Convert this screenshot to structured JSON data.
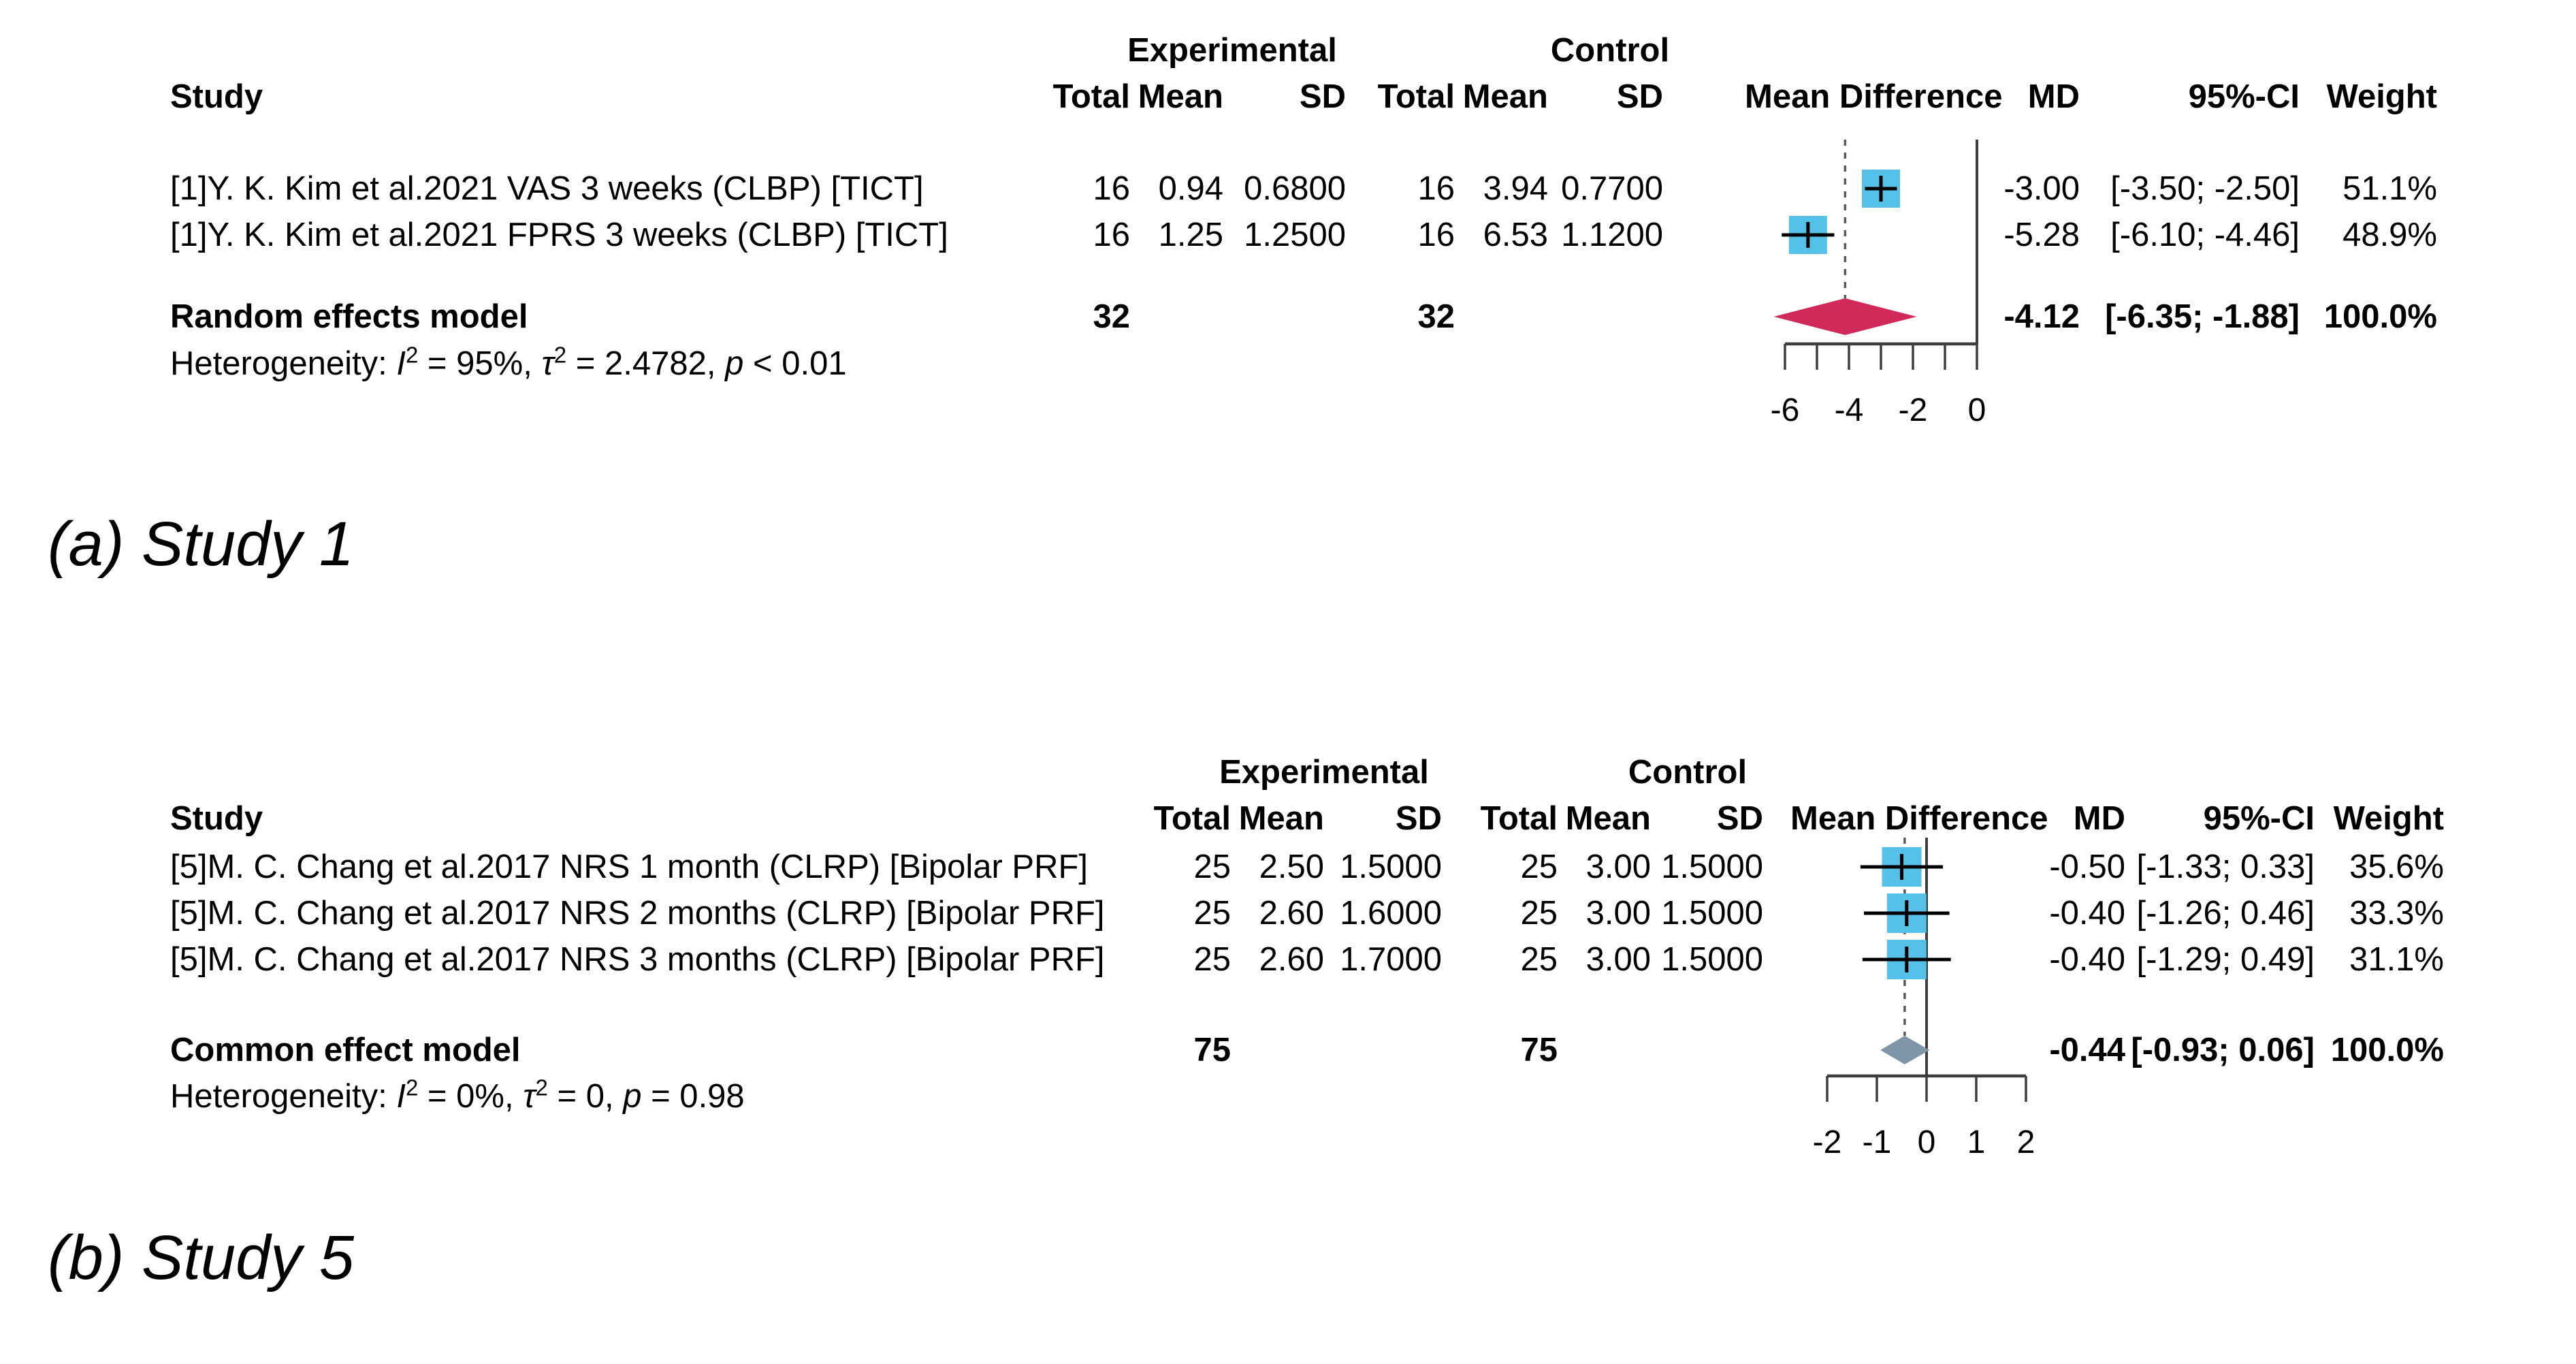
{
  "captions": {
    "a": "(a) Study 1",
    "b": "(b) Study 5"
  },
  "chart_data": [
    {
      "type": "forest",
      "caption": "(a) Study 1",
      "col_headers": {
        "experimental": "Experimental",
        "control": "Control",
        "study": "Study",
        "total1": "Total",
        "mean1": "Mean",
        "sd1": "SD",
        "total2": "Total",
        "mean2": "Mean",
        "sd2": "SD",
        "mean_difference": "Mean Difference",
        "md": "MD",
        "ci": "95%-CI",
        "weight": "Weight"
      },
      "rows": [
        {
          "study": "[1]Y. K. Kim et al.2021 VAS 3 weeks (CLBP) [TICT]",
          "exp_total": "16",
          "exp_mean": "0.94",
          "exp_sd": "0.6800",
          "ctl_total": "16",
          "ctl_mean": "3.94",
          "ctl_sd": "0.7700",
          "md": -3.0,
          "ci_low": -3.5,
          "ci_high": -2.5,
          "md_label": "-3.00",
          "ci_label": "[-3.50; -2.50]",
          "weight_label": "51.1%"
        },
        {
          "study": "[1]Y. K. Kim et al.2021 FPRS 3 weeks (CLBP) [TICT]",
          "exp_total": "16",
          "exp_mean": "1.25",
          "exp_sd": "1.2500",
          "ctl_total": "16",
          "ctl_mean": "6.53",
          "ctl_sd": "1.1200",
          "md": -5.28,
          "ci_low": -6.1,
          "ci_high": -4.46,
          "md_label": "-5.28",
          "ci_label": "[-6.10; -4.46]",
          "weight_label": "48.9%"
        }
      ],
      "summary": {
        "label": "Random effects model",
        "exp_total": "32",
        "ctl_total": "32",
        "md": -4.12,
        "ci_low": -6.35,
        "ci_high": -1.88,
        "md_label": "-4.12",
        "ci_label": "[-6.35; -1.88]",
        "weight_label": "100.0%"
      },
      "heterogeneity": [
        {
          "t": "Heterogeneity: "
        },
        {
          "t": "I",
          "s": "i"
        },
        {
          "t": "2",
          "s": "sup"
        },
        {
          "t": " = 95%, "
        },
        {
          "t": "τ",
          "s": "i"
        },
        {
          "t": "2",
          "s": "sup"
        },
        {
          "t": " = 2.4782, "
        },
        {
          "t": "p",
          "s": "i"
        },
        {
          "t": " < 0.01"
        }
      ],
      "axis": {
        "min": -6,
        "max": 0,
        "ref_line": 0,
        "ticks": [
          -6,
          -5,
          -4,
          -3,
          -2,
          -1,
          0
        ],
        "labels": [
          {
            "v": -6,
            "t": "-6"
          },
          {
            "v": -4,
            "t": "-4"
          },
          {
            "v": -2,
            "t": "-2"
          },
          {
            "v": 0,
            "t": "0"
          }
        ]
      },
      "colors": {
        "square": "#55c1e8",
        "diamond": "#d2295b",
        "dashed": "#5a5a5a",
        "axis": "#3d3d3d"
      }
    },
    {
      "type": "forest",
      "caption": "(b) Study 5",
      "col_headers": {
        "experimental": "Experimental",
        "control": "Control",
        "study": "Study",
        "total1": "Total",
        "mean1": "Mean",
        "sd1": "SD",
        "total2": "Total",
        "mean2": "Mean",
        "sd2": "SD",
        "mean_difference": "Mean Difference",
        "md": "MD",
        "ci": "95%-CI",
        "weight": "Weight"
      },
      "rows": [
        {
          "study": "[5]M. C. Chang et al.2017 NRS 1 month (CLRP) [Bipolar PRF]",
          "exp_total": "25",
          "exp_mean": "2.50",
          "exp_sd": "1.5000",
          "ctl_total": "25",
          "ctl_mean": "3.00",
          "ctl_sd": "1.5000",
          "md": -0.5,
          "ci_low": -1.33,
          "ci_high": 0.33,
          "md_label": "-0.50",
          "ci_label": "[-1.33; 0.33]",
          "weight_label": "35.6%"
        },
        {
          "study": "[5]M. C. Chang et al.2017 NRS 2 months (CLRP) [Bipolar PRF]",
          "exp_total": "25",
          "exp_mean": "2.60",
          "exp_sd": "1.6000",
          "ctl_total": "25",
          "ctl_mean": "3.00",
          "ctl_sd": "1.5000",
          "md": -0.4,
          "ci_low": -1.26,
          "ci_high": 0.46,
          "md_label": "-0.40",
          "ci_label": "[-1.26; 0.46]",
          "weight_label": "33.3%"
        },
        {
          "study": "[5]M. C. Chang et al.2017 NRS 3 months (CLRP) [Bipolar PRF]",
          "exp_total": "25",
          "exp_mean": "2.60",
          "exp_sd": "1.7000",
          "ctl_total": "25",
          "ctl_mean": "3.00",
          "ctl_sd": "1.5000",
          "md": -0.4,
          "ci_low": -1.29,
          "ci_high": 0.49,
          "md_label": "-0.40",
          "ci_label": "[-1.29; 0.49]",
          "weight_label": "31.1%"
        }
      ],
      "summary": {
        "label": "Common effect model",
        "exp_total": "75",
        "ctl_total": "75",
        "md": -0.44,
        "ci_low": -0.93,
        "ci_high": 0.06,
        "md_label": "-0.44",
        "ci_label": "[-0.93; 0.06]",
        "weight_label": "100.0%"
      },
      "heterogeneity": [
        {
          "t": "Heterogeneity: "
        },
        {
          "t": "I",
          "s": "i"
        },
        {
          "t": "2",
          "s": "sup"
        },
        {
          "t": " = 0%, "
        },
        {
          "t": "τ",
          "s": "i"
        },
        {
          "t": "2",
          "s": "sup"
        },
        {
          "t": " = 0, "
        },
        {
          "t": "p",
          "s": "i"
        },
        {
          "t": " = 0.98"
        }
      ],
      "axis": {
        "min": -2,
        "max": 2,
        "ref_line": 0,
        "ticks": [
          -2,
          -1,
          0,
          1,
          2
        ],
        "labels": [
          {
            "v": -2,
            "t": "-2"
          },
          {
            "v": -1,
            "t": "-1"
          },
          {
            "v": 0,
            "t": "0"
          },
          {
            "v": 1,
            "t": "1"
          },
          {
            "v": 2,
            "t": "2"
          }
        ]
      },
      "colors": {
        "square": "#55c1e8",
        "diamond": "#8096a8",
        "dashed": "#5a5a5a",
        "axis": "#3d3d3d"
      }
    }
  ]
}
